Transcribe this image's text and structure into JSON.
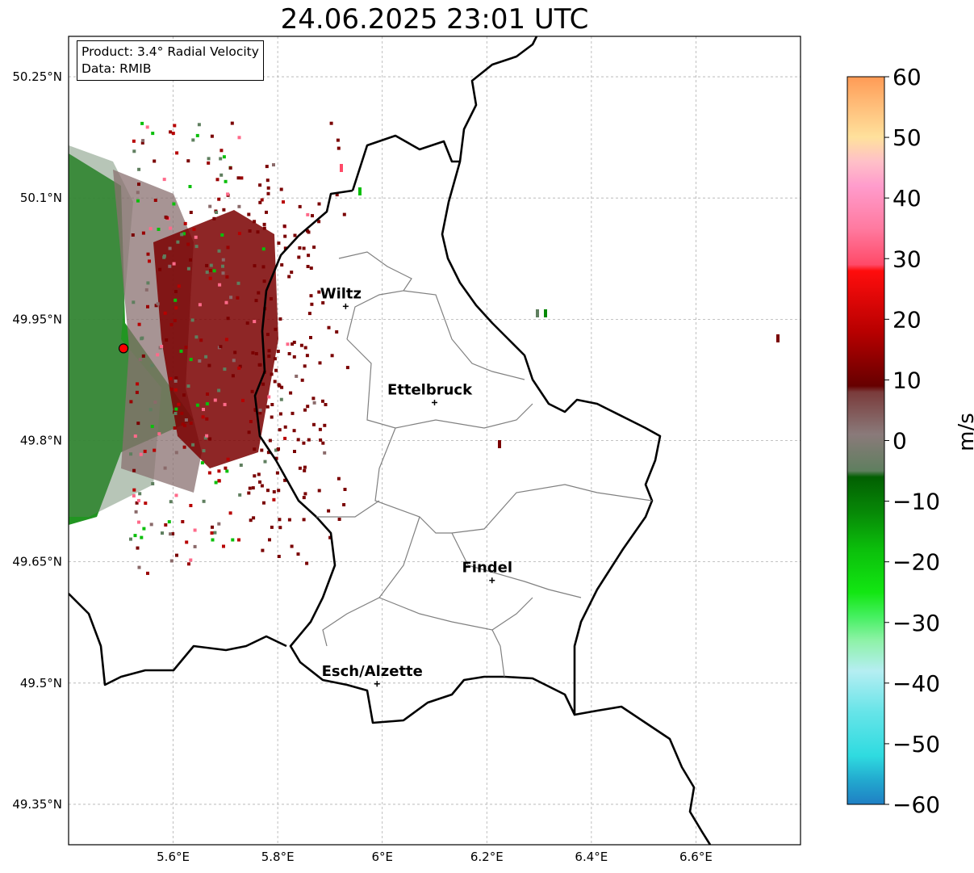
{
  "title": "24.06.2025 23:01 UTC",
  "info": {
    "product": "Product: 3.4° Radial Velocity",
    "source": "Data: RMIB"
  },
  "axes": {
    "lat_ticks": [
      {
        "value": 50.25,
        "label": "50.25°N"
      },
      {
        "value": 50.1,
        "label": "50.1°N"
      },
      {
        "value": 49.95,
        "label": "49.95°N"
      },
      {
        "value": 49.8,
        "label": "49.8°N"
      },
      {
        "value": 49.65,
        "label": "49.65°N"
      },
      {
        "value": 49.5,
        "label": "49.5°N"
      },
      {
        "value": 49.35,
        "label": "49.35°N"
      }
    ],
    "lon_ticks": [
      {
        "value": 5.6,
        "label": "5.6°E"
      },
      {
        "value": 5.8,
        "label": "5.8°E"
      },
      {
        "value": 6.0,
        "label": "6°E"
      },
      {
        "value": 6.2,
        "label": "6.2°E"
      },
      {
        "value": 6.4,
        "label": "6.4°E"
      },
      {
        "value": 6.6,
        "label": "6.6°E"
      }
    ],
    "lon_range": [
      5.4,
      6.8
    ],
    "lat_range": [
      49.3,
      50.3
    ],
    "grid": true
  },
  "cities": [
    {
      "name": "Wiltz",
      "lon": 5.93,
      "lat": 49.966
    },
    {
      "name": "Ettelbruck",
      "lon": 6.1,
      "lat": 49.847
    },
    {
      "name": "Findel",
      "lon": 6.21,
      "lat": 49.627
    },
    {
      "name": "Esch/Alzette",
      "lon": 5.99,
      "lat": 49.499
    }
  ],
  "radar": {
    "lon": 5.505,
    "lat": 49.914
  },
  "colorbar": {
    "label": "m/s",
    "min": -60,
    "max": 60,
    "ticks": [
      {
        "value": 60,
        "label": "60"
      },
      {
        "value": 50,
        "label": "50"
      },
      {
        "value": 40,
        "label": "40"
      },
      {
        "value": 30,
        "label": "30"
      },
      {
        "value": 20,
        "label": "20"
      },
      {
        "value": 10,
        "label": "10"
      },
      {
        "value": 0,
        "label": "0"
      },
      {
        "value": -10,
        "label": "−10"
      },
      {
        "value": -20,
        "label": "−20"
      },
      {
        "value": -30,
        "label": "−30"
      },
      {
        "value": -40,
        "label": "−40"
      },
      {
        "value": -50,
        "label": "−50"
      },
      {
        "value": -60,
        "label": "−60"
      }
    ],
    "stops": [
      {
        "value": -60,
        "color": "#1f7fc4"
      },
      {
        "value": -56,
        "color": "#22a9cf"
      },
      {
        "value": -52,
        "color": "#2fdbe0"
      },
      {
        "value": -45,
        "color": "#64e4e8"
      },
      {
        "value": -38,
        "color": "#b5eef2"
      },
      {
        "value": -33,
        "color": "#8ef2a8"
      },
      {
        "value": -29,
        "color": "#45f060"
      },
      {
        "value": -25,
        "color": "#12e612"
      },
      {
        "value": -18,
        "color": "#0bbf0b"
      },
      {
        "value": -12,
        "color": "#078a07"
      },
      {
        "value": -6,
        "color": "#025f02"
      },
      {
        "value": -5,
        "color": "#5f7f5f"
      },
      {
        "value": 1,
        "color": "#8a7a7a"
      },
      {
        "value": 8,
        "color": "#7a3b3b"
      },
      {
        "value": 9,
        "color": "#660000"
      },
      {
        "value": 18,
        "color": "#b80000"
      },
      {
        "value": 28,
        "color": "#ff0d0d"
      },
      {
        "value": 29,
        "color": "#ff4a68"
      },
      {
        "value": 35,
        "color": "#ff7aa0"
      },
      {
        "value": 42,
        "color": "#ff9ccc"
      },
      {
        "value": 46,
        "color": "#ffc0c8"
      },
      {
        "value": 50,
        "color": "#ffe19c"
      },
      {
        "value": 56,
        "color": "#ffb874"
      },
      {
        "value": 60,
        "color": "#ff9a55"
      }
    ]
  },
  "colors": {
    "border_national": "#000000",
    "border_cantonal": "#808080",
    "gridline": "#b0b0b0",
    "radar_site": "#ff0000"
  }
}
